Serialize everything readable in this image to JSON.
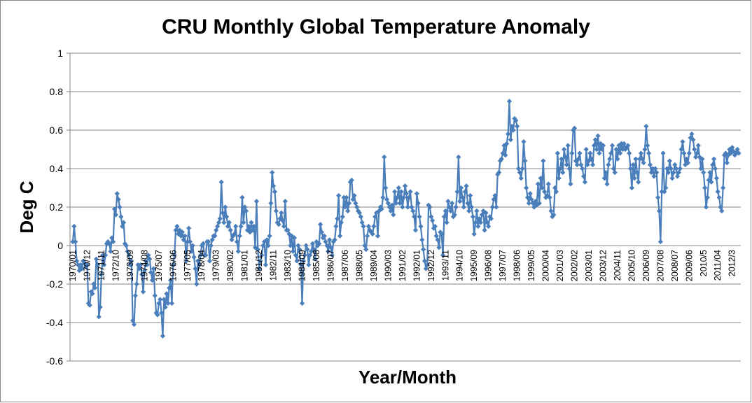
{
  "chart_data": {
    "type": "line",
    "title": "CRU Monthly Global Temperature Anomaly",
    "xlabel": "Year/Month",
    "ylabel": "Deg C",
    "ylim": [
      -0.6,
      1
    ],
    "yticks": [
      -0.6,
      -0.4,
      -0.2,
      0,
      0.2,
      0.4,
      0.6,
      0.8,
      1
    ],
    "ytick_labels": [
      "-0.6",
      "-0.4",
      "-0.2",
      "0",
      "0.2",
      "0.4",
      "0.6",
      "0.8",
      "1"
    ],
    "grid": true,
    "marker": "diamond",
    "line_color": "#4a7ebb",
    "start_month": "1970/01",
    "end_month": "2012/10",
    "xtick_every_months": 11,
    "xtick_labels": [
      "1970/01",
      "1970/12",
      "1971/11",
      "1972/10",
      "1973/09",
      "1974/08",
      "1975/07",
      "1976/06",
      "1977/05",
      "1978/04",
      "1979/03",
      "1980/02",
      "1981/01",
      "1981/12",
      "1982/11",
      "1983/10",
      "1984/09",
      "1985/08",
      "1986/07",
      "1987/06",
      "1988/05",
      "1989/04",
      "1990/03",
      "1991/02",
      "1992/01",
      "1992/12",
      "1993/11",
      "1994/10",
      "1995/09",
      "1996/08",
      "1997/07",
      "1998/06",
      "1999/05",
      "2000/04",
      "2001/03",
      "2002/02",
      "2003/01",
      "2003/12",
      "2004/11",
      "2005/10",
      "2006/09",
      "2007/08",
      "2008/07",
      "2009/06",
      "2010/5",
      "2011/04",
      "2012/3"
    ],
    "values": [
      0.02,
      0.1,
      0.02,
      -0.08,
      -0.1,
      -0.13,
      -0.1,
      -0.12,
      -0.08,
      -0.09,
      -0.11,
      -0.1,
      -0.3,
      -0.31,
      -0.24,
      -0.25,
      -0.2,
      -0.22,
      -0.07,
      -0.1,
      -0.37,
      -0.32,
      -0.15,
      -0.05,
      -0.1,
      -0.05,
      0.01,
      0.02,
      0.01,
      -0.03,
      0.04,
      0.02,
      0.19,
      0.16,
      0.27,
      0.24,
      0.2,
      0.15,
      0.1,
      0.12,
      0.01,
      0.0,
      -0.03,
      -0.05,
      -0.1,
      -0.08,
      -0.39,
      -0.41,
      -0.26,
      -0.2,
      -0.1,
      -0.12,
      -0.1,
      -0.15,
      -0.24,
      -0.13,
      -0.08,
      -0.1,
      -0.05,
      -0.07,
      -0.14,
      -0.18,
      -0.12,
      -0.26,
      -0.35,
      -0.36,
      -0.3,
      -0.28,
      -0.35,
      -0.47,
      -0.28,
      -0.32,
      -0.25,
      -0.3,
      -0.22,
      -0.18,
      -0.3,
      -0.1,
      -0.05,
      0.08,
      0.1,
      0.06,
      0.08,
      0.05,
      0.07,
      0.03,
      0.05,
      -0.08,
      0.02,
      0.09,
      0.02,
      -0.03,
      0.0,
      -0.06,
      -0.12,
      -0.2,
      -0.08,
      -0.1,
      -0.05,
      0.0,
      0.01,
      -0.05,
      -0.05,
      0.02,
      0.02,
      -0.08,
      0.0,
      0.03,
      0.05,
      0.05,
      0.08,
      0.1,
      0.12,
      0.14,
      0.33,
      0.17,
      0.12,
      0.2,
      0.15,
      0.1,
      0.12,
      0.08,
      0.03,
      0.05,
      0.06,
      0.1,
      0.02,
      -0.03,
      0.05,
      0.1,
      0.25,
      0.12,
      0.2,
      0.18,
      0.08,
      0.1,
      0.07,
      0.12,
      0.08,
      0.1,
      -0.01,
      0.23,
      -0.02,
      -0.12,
      -0.08,
      -0.05,
      0.0,
      0.02,
      -0.1,
      0.03,
      0.0,
      0.05,
      0.22,
      0.38,
      0.31,
      0.28,
      0.18,
      0.12,
      0.11,
      0.14,
      0.17,
      0.13,
      0.1,
      0.23,
      0.08,
      0.08,
      0.06,
      0.0,
      0.05,
      -0.03,
      0.04,
      -0.05,
      -0.08,
      0.0,
      -0.02,
      -0.1,
      -0.3,
      -0.08,
      -0.05,
      0.0,
      -0.02,
      -0.1,
      -0.05,
      -0.03,
      0.01,
      -0.02,
      -0.07,
      0.02,
      0.0,
      0.01,
      0.11,
      0.07,
      0.04,
      0.05,
      0.02,
      0.0,
      -0.03,
      0.03,
      -0.01,
      -0.05,
      0.02,
      0.03,
      0.1,
      0.14,
      0.26,
      0.05,
      0.12,
      0.15,
      0.25,
      0.2,
      0.25,
      0.18,
      0.22,
      0.33,
      0.34,
      0.24,
      0.26,
      0.22,
      0.2,
      0.18,
      0.17,
      0.15,
      0.12,
      0.1,
      0.0,
      -0.02,
      0.05,
      0.1,
      0.08,
      0.07,
      0.06,
      0.1,
      0.15,
      0.17,
      0.05,
      0.18,
      0.2,
      0.19,
      0.25,
      0.46,
      0.3,
      0.24,
      0.22,
      0.2,
      0.18,
      0.21,
      0.16,
      0.28,
      0.22,
      0.25,
      0.3,
      0.22,
      0.28,
      0.2,
      0.25,
      0.31,
      0.27,
      0.2,
      0.25,
      0.28,
      0.2,
      0.18,
      0.15,
      0.08,
      0.27,
      0.22,
      0.15,
      0.1,
      0.03,
      -0.02,
      -0.08,
      -0.12,
      -0.1,
      0.21,
      0.2,
      0.15,
      0.13,
      0.09,
      0.1,
      0.05,
      0.03,
      -0.01,
      0.07,
      0.06,
      -0.05,
      0.15,
      0.18,
      0.12,
      0.23,
      0.2,
      0.18,
      0.22,
      0.15,
      0.16,
      0.2,
      0.28,
      0.46,
      0.23,
      0.3,
      0.25,
      0.2,
      0.28,
      0.31,
      0.22,
      0.18,
      0.26,
      0.2,
      0.15,
      0.06,
      0.12,
      0.18,
      0.1,
      0.14,
      0.12,
      0.16,
      0.18,
      0.08,
      0.17,
      0.12,
      0.1,
      0.15,
      0.14,
      0.2,
      0.24,
      0.26,
      0.2,
      0.37,
      0.38,
      0.44,
      0.45,
      0.48,
      0.52,
      0.47,
      0.53,
      0.58,
      0.75,
      0.55,
      0.62,
      0.6,
      0.66,
      0.65,
      0.62,
      0.4,
      0.38,
      0.35,
      0.4,
      0.54,
      0.44,
      0.3,
      0.25,
      0.22,
      0.27,
      0.24,
      0.22,
      0.2,
      0.23,
      0.21,
      0.32,
      0.22,
      0.35,
      0.3,
      0.44,
      0.28,
      0.25,
      0.26,
      0.32,
      0.25,
      0.18,
      0.15,
      0.16,
      0.3,
      0.28,
      0.48,
      0.35,
      0.4,
      0.45,
      0.38,
      0.5,
      0.46,
      0.42,
      0.52,
      0.4,
      0.32,
      0.48,
      0.6,
      0.61,
      0.44,
      0.42,
      0.45,
      0.48,
      0.42,
      0.4,
      0.36,
      0.33,
      0.5,
      0.42,
      0.44,
      0.48,
      0.45,
      0.42,
      0.52,
      0.55,
      0.5,
      0.57,
      0.48,
      0.53,
      0.5,
      0.52,
      0.35,
      0.38,
      0.32,
      0.42,
      0.45,
      0.48,
      0.52,
      0.4,
      0.38,
      0.5,
      0.45,
      0.52,
      0.48,
      0.53,
      0.5,
      0.53,
      0.5,
      0.51,
      0.52,
      0.48,
      0.4,
      0.3,
      0.42,
      0.35,
      0.45,
      0.38,
      0.33,
      0.45,
      0.48,
      0.45,
      0.43,
      0.5,
      0.62,
      0.52,
      0.48,
      0.42,
      0.38,
      0.4,
      0.36,
      0.4,
      0.38,
      0.25,
      0.18,
      0.02,
      0.28,
      0.48,
      0.28,
      0.3,
      0.4,
      0.38,
      0.44,
      0.4,
      0.35,
      0.38,
      0.42,
      0.4,
      0.36,
      0.38,
      0.4,
      0.5,
      0.54,
      0.48,
      0.42,
      0.45,
      0.43,
      0.48,
      0.56,
      0.58,
      0.55,
      0.5,
      0.46,
      0.48,
      0.52,
      0.46,
      0.4,
      0.45,
      0.38,
      0.3,
      0.2,
      0.25,
      0.34,
      0.38,
      0.33,
      0.42,
      0.45,
      0.4,
      0.35,
      0.28,
      0.25,
      0.2,
      0.18,
      0.3,
      0.47,
      0.48,
      0.43,
      0.47,
      0.5,
      0.48,
      0.51,
      0.49,
      0.47,
      0.48,
      0.5,
      0.48
    ]
  }
}
